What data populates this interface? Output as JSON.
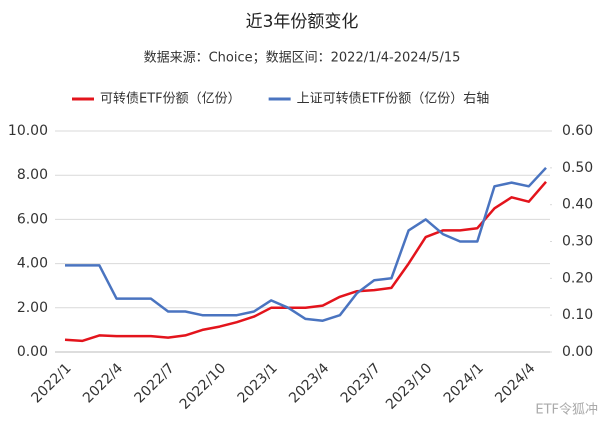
{
  "chart_data": {
    "type": "line",
    "title": "近3年份额变化",
    "subtitle": "数据来源：Choice；数据区间：2022/1/4-2024/5/15",
    "x": [
      "2022/1",
      null,
      null,
      "2022/4",
      null,
      null,
      "2022/7",
      null,
      null,
      "2022/10",
      null,
      null,
      "2023/1",
      null,
      null,
      "2023/4",
      null,
      null,
      "2023/7",
      null,
      null,
      "2023/10",
      null,
      null,
      "2024/1",
      null,
      null,
      "2024/4",
      null
    ],
    "series": [
      {
        "name": "可转债ETF份额（亿份）",
        "color": "#e3141c",
        "axis": "y",
        "values": [
          0.55,
          0.5,
          0.75,
          0.72,
          0.72,
          0.72,
          0.65,
          0.75,
          1.0,
          1.15,
          1.35,
          1.6,
          2.0,
          2.0,
          2.0,
          2.1,
          2.5,
          2.75,
          2.8,
          2.9,
          4.0,
          5.2,
          5.5,
          5.5,
          5.6,
          6.5,
          7.0,
          6.8,
          7.7
        ]
      },
      {
        "name": "上证可转债ETF份额（亿份）右轴",
        "color": "#4a74c0",
        "axis": "y2",
        "values": [
          0.235,
          0.235,
          0.235,
          0.145,
          0.145,
          0.145,
          0.11,
          0.11,
          0.1,
          0.1,
          0.1,
          0.11,
          0.14,
          0.12,
          0.09,
          0.085,
          0.1,
          0.16,
          0.195,
          0.2,
          0.33,
          0.36,
          0.32,
          0.3,
          0.3,
          0.45,
          0.46,
          0.45,
          0.5
        ]
      }
    ],
    "ylim": [
      0,
      10
    ],
    "yticks": [
      {
        "value": 0,
        "label": "0.00"
      },
      {
        "value": 2,
        "label": "2.00"
      },
      {
        "value": 4,
        "label": "4.00"
      },
      {
        "value": 6,
        "label": "6.00"
      },
      {
        "value": 8,
        "label": "8.00"
      },
      {
        "value": 10,
        "label": "10.00"
      }
    ],
    "y2lim": [
      0,
      0.6
    ],
    "y2ticks": [
      {
        "value": 0,
        "label": "0.00"
      },
      {
        "value": 0.1,
        "label": "0.10"
      },
      {
        "value": 0.2,
        "label": "0.20"
      },
      {
        "value": 0.3,
        "label": "0.30"
      },
      {
        "value": 0.4,
        "label": "0.40"
      },
      {
        "value": 0.5,
        "label": "0.50"
      },
      {
        "value": 0.6,
        "label": "0.60"
      }
    ],
    "grid": true,
    "legend": "top",
    "watermark": "ETF令狐冲"
  }
}
